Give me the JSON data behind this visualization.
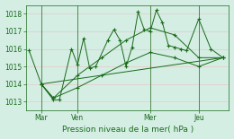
{
  "title": "Pression niveau de la mer( hPa )",
  "ylabel_values": [
    1013,
    1014,
    1015,
    1016,
    1017,
    1018
  ],
  "ylim": [
    1012.5,
    1018.5
  ],
  "bg_color": "#d4eee4",
  "grid_color": "#e8c8c8",
  "line_color": "#1a6b1a",
  "x_tick_labels": [
    "Mar",
    "Ven",
    "Mer",
    "Jeu"
  ],
  "x_tick_positions": [
    2,
    8,
    20,
    28
  ],
  "vline_positions": [
    2,
    8,
    20,
    28
  ],
  "xlim": [
    -0.5,
    33
  ],
  "series1_x": [
    0,
    2,
    4,
    5,
    7,
    8,
    9,
    10,
    11,
    13,
    14,
    15,
    16,
    17,
    18,
    19,
    20,
    21,
    22,
    23,
    24,
    25,
    26,
    28,
    30,
    32
  ],
  "series1_y": [
    1015.9,
    1014.0,
    1013.1,
    1013.1,
    1016.0,
    1015.1,
    1016.6,
    1014.9,
    1015.0,
    1016.5,
    1017.1,
    1016.5,
    1015.0,
    1016.1,
    1018.1,
    1017.1,
    1017.0,
    1018.2,
    1017.5,
    1016.2,
    1016.1,
    1016.0,
    1015.9,
    1017.7,
    1016.0,
    1015.5
  ],
  "series2_x": [
    2,
    4,
    8,
    12,
    16,
    20,
    24,
    28,
    32
  ],
  "series2_y": [
    1014.0,
    1013.2,
    1014.5,
    1015.5,
    1016.5,
    1017.2,
    1016.8,
    1015.5,
    1015.5
  ],
  "series3_x": [
    2,
    4,
    8,
    12,
    16,
    20,
    24,
    28,
    32
  ],
  "series3_y": [
    1014.0,
    1013.2,
    1013.8,
    1014.5,
    1015.2,
    1015.8,
    1015.5,
    1015.0,
    1015.5
  ],
  "series4_x": [
    2,
    32
  ],
  "series4_y": [
    1014.0,
    1015.5
  ],
  "x_count": 33
}
